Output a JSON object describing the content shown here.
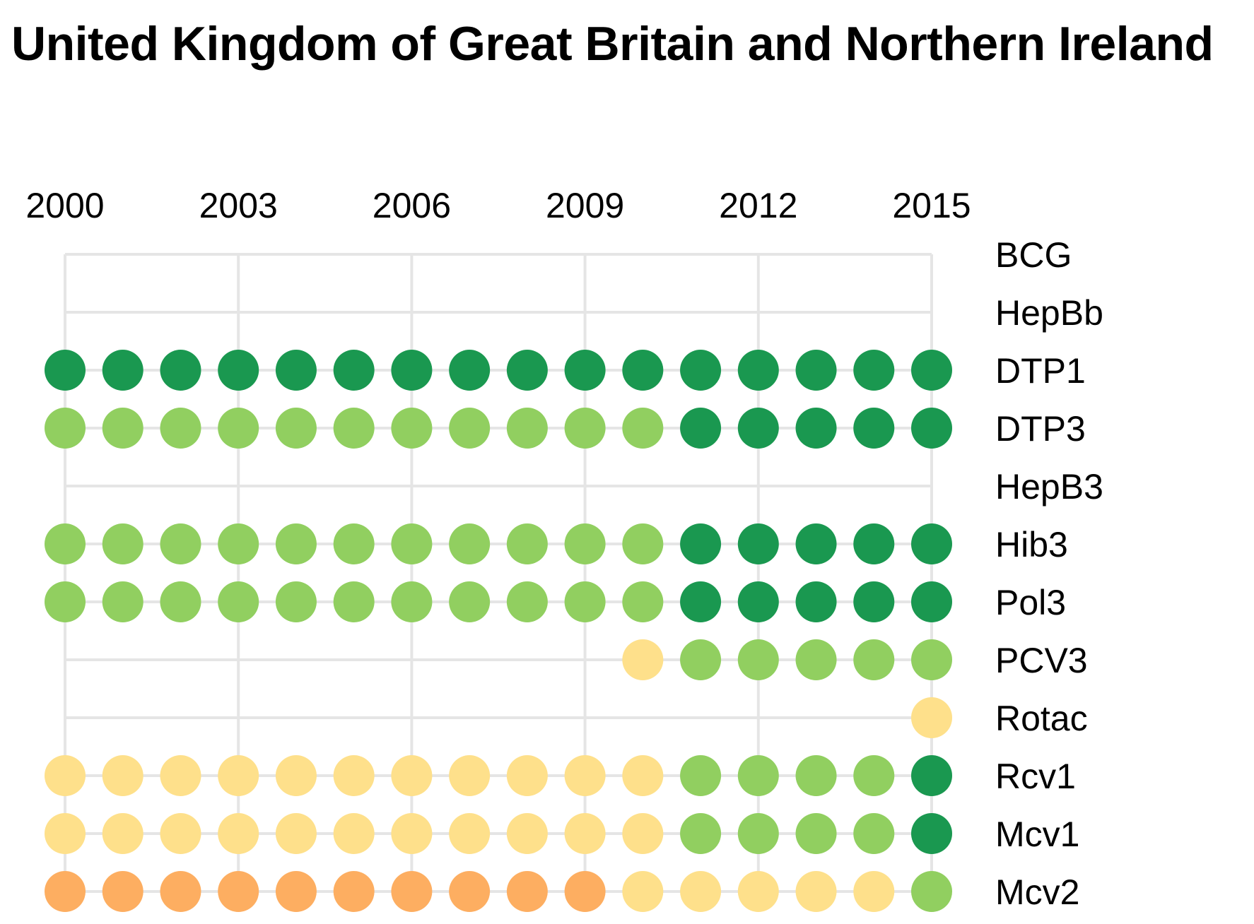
{
  "chart_data": {
    "type": "dot-matrix",
    "title": "United Kingdom of Great Britain and Northern Ireland",
    "x": [
      2000,
      2001,
      2002,
      2003,
      2004,
      2005,
      2006,
      2007,
      2008,
      2009,
      2010,
      2011,
      2012,
      2013,
      2014,
      2015
    ],
    "x_tick_labels": [
      "2000",
      "2003",
      "2006",
      "2009",
      "2012",
      "2015"
    ],
    "grid": true,
    "level_colors": {
      "dark-green": "#1a9850",
      "light-green": "#91cf60",
      "yellow": "#fee08b",
      "orange": "#fdae61"
    },
    "series": [
      {
        "name": "BCG",
        "values": [
          null,
          null,
          null,
          null,
          null,
          null,
          null,
          null,
          null,
          null,
          null,
          null,
          null,
          null,
          null,
          null
        ]
      },
      {
        "name": "HepBb",
        "values": [
          null,
          null,
          null,
          null,
          null,
          null,
          null,
          null,
          null,
          null,
          null,
          null,
          null,
          null,
          null,
          null
        ]
      },
      {
        "name": "DTP1",
        "values": [
          "dark-green",
          "dark-green",
          "dark-green",
          "dark-green",
          "dark-green",
          "dark-green",
          "dark-green",
          "dark-green",
          "dark-green",
          "dark-green",
          "dark-green",
          "dark-green",
          "dark-green",
          "dark-green",
          "dark-green",
          "dark-green"
        ]
      },
      {
        "name": "DTP3",
        "values": [
          "light-green",
          "light-green",
          "light-green",
          "light-green",
          "light-green",
          "light-green",
          "light-green",
          "light-green",
          "light-green",
          "light-green",
          "light-green",
          "dark-green",
          "dark-green",
          "dark-green",
          "dark-green",
          "dark-green"
        ]
      },
      {
        "name": "HepB3",
        "values": [
          null,
          null,
          null,
          null,
          null,
          null,
          null,
          null,
          null,
          null,
          null,
          null,
          null,
          null,
          null,
          null
        ]
      },
      {
        "name": "Hib3",
        "values": [
          "light-green",
          "light-green",
          "light-green",
          "light-green",
          "light-green",
          "light-green",
          "light-green",
          "light-green",
          "light-green",
          "light-green",
          "light-green",
          "dark-green",
          "dark-green",
          "dark-green",
          "dark-green",
          "dark-green"
        ]
      },
      {
        "name": "Pol3",
        "values": [
          "light-green",
          "light-green",
          "light-green",
          "light-green",
          "light-green",
          "light-green",
          "light-green",
          "light-green",
          "light-green",
          "light-green",
          "light-green",
          "dark-green",
          "dark-green",
          "dark-green",
          "dark-green",
          "dark-green"
        ]
      },
      {
        "name": "PCV3",
        "values": [
          null,
          null,
          null,
          null,
          null,
          null,
          null,
          null,
          null,
          null,
          "yellow",
          "light-green",
          "light-green",
          "light-green",
          "light-green",
          "light-green"
        ]
      },
      {
        "name": "Rotac",
        "values": [
          null,
          null,
          null,
          null,
          null,
          null,
          null,
          null,
          null,
          null,
          null,
          null,
          null,
          null,
          null,
          "yellow"
        ]
      },
      {
        "name": "Rcv1",
        "values": [
          "yellow",
          "yellow",
          "yellow",
          "yellow",
          "yellow",
          "yellow",
          "yellow",
          "yellow",
          "yellow",
          "yellow",
          "yellow",
          "light-green",
          "light-green",
          "light-green",
          "light-green",
          "dark-green"
        ]
      },
      {
        "name": "Mcv1",
        "values": [
          "yellow",
          "yellow",
          "yellow",
          "yellow",
          "yellow",
          "yellow",
          "yellow",
          "yellow",
          "yellow",
          "yellow",
          "yellow",
          "light-green",
          "light-green",
          "light-green",
          "light-green",
          "dark-green"
        ]
      },
      {
        "name": "Mcv2",
        "values": [
          "orange",
          "orange",
          "orange",
          "orange",
          "orange",
          "orange",
          "orange",
          "orange",
          "orange",
          "orange",
          "yellow",
          "yellow",
          "yellow",
          "yellow",
          "yellow",
          "light-green"
        ]
      }
    ]
  }
}
